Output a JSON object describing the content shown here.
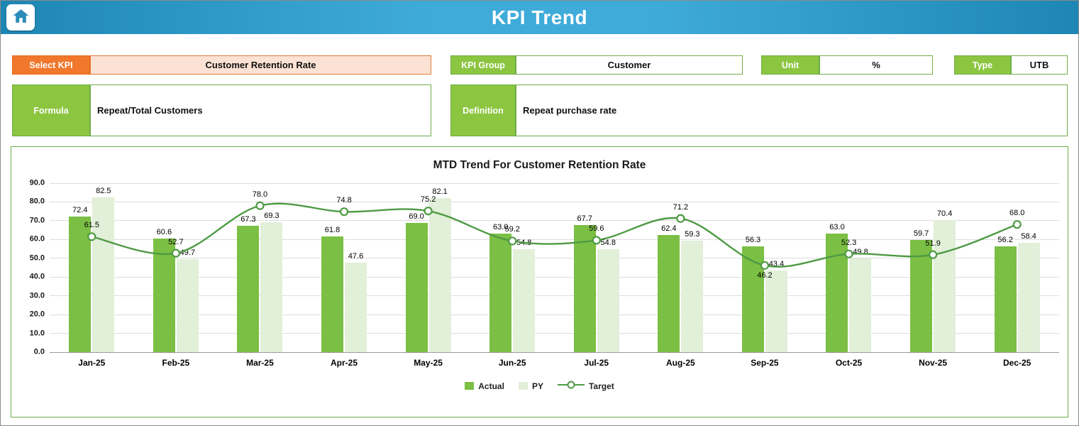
{
  "header": {
    "title": "KPI Trend",
    "home_icon": "home"
  },
  "fields": {
    "select_kpi": {
      "label": "Select KPI",
      "value": "Customer Retention Rate"
    },
    "kpi_group": {
      "label": "KPI Group",
      "value": "Customer"
    },
    "unit": {
      "label": "Unit",
      "value": "%"
    },
    "type": {
      "label": "Type",
      "value": "UTB"
    },
    "formula": {
      "label": "Formula",
      "value": "Repeat/Total Customers"
    },
    "definition": {
      "label": "Definition",
      "value": "Repeat purchase rate"
    }
  },
  "chart_data": {
    "type": "bar+line combo",
    "title": "MTD Trend For Customer Retention Rate",
    "categories": [
      "Jan-25",
      "Feb-25",
      "Mar-25",
      "Apr-25",
      "May-25",
      "Jun-25",
      "Jul-25",
      "Aug-25",
      "Sep-25",
      "Oct-25",
      "Nov-25",
      "Dec-25"
    ],
    "series": [
      {
        "name": "Actual",
        "type": "bar",
        "color": "#7BBF44",
        "values": [
          72.4,
          60.6,
          67.3,
          61.8,
          69.0,
          63.0,
          67.7,
          62.4,
          56.3,
          63.0,
          59.7,
          56.2
        ]
      },
      {
        "name": "PY",
        "type": "bar",
        "color": "#E2EFD9",
        "values": [
          82.5,
          49.7,
          69.3,
          47.6,
          82.1,
          54.8,
          54.8,
          59.3,
          43.4,
          49.8,
          70.4,
          58.4
        ]
      },
      {
        "name": "Target",
        "type": "line",
        "color": "#4E9A44",
        "marker": "circle",
        "values": [
          61.5,
          52.7,
          78.0,
          74.8,
          75.2,
          59.2,
          59.6,
          71.2,
          46.2,
          52.3,
          51.9,
          68.0
        ]
      }
    ],
    "ylim": [
      0,
      90
    ],
    "ytick_step": 10,
    "grid": true,
    "legend_position": "bottom",
    "target_label_below": [
      false,
      false,
      false,
      false,
      false,
      false,
      false,
      false,
      true,
      false,
      false,
      false
    ]
  },
  "colors": {
    "header_teal": "#2E9BC6",
    "accent_orange": "#F0772C",
    "accent_orange_fill": "#FBE2D4",
    "accent_green": "#8CC540",
    "border_green": "#6FAD47",
    "bar_actual": "#7BBF44",
    "bar_py": "#E2EFD9",
    "line_target": "#4E9A44"
  }
}
